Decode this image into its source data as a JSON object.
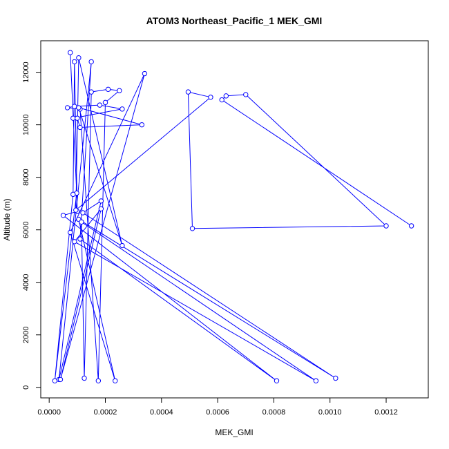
{
  "chart_data": {
    "type": "line",
    "title": "ATOM3 Northeast_Pacific_1 MEK_GMI",
    "xlabel": "MEK_GMI",
    "ylabel": "Altitude (m)",
    "xlim": [
      -3e-05,
      0.00135
    ],
    "ylim": [
      -400,
      13200
    ],
    "x_ticks": [
      0.0,
      0.0002,
      0.0004,
      0.0006,
      0.0008,
      0.001,
      0.0012
    ],
    "x_tick_labels": [
      "0.0000",
      "0.0002",
      "0.0004",
      "0.0006",
      "0.0008",
      "0.0010",
      "0.0012"
    ],
    "y_ticks": [
      0,
      2000,
      4000,
      6000,
      8000,
      10000,
      12000
    ],
    "y_tick_labels": [
      "0",
      "2000",
      "4000",
      "6000",
      "8000",
      "10000",
      "12000"
    ],
    "line_color": "#0000ff",
    "marker": "open-circle",
    "series": [
      {
        "points": [
          {
            "x": 7.5e-05,
            "y": 12750
          },
          {
            "x": 9.8e-05,
            "y": 7400
          },
          {
            "x": 2e-05,
            "y": 250
          },
          {
            "x": 8.5e-05,
            "y": 7350
          },
          {
            "x": 9e-05,
            "y": 12400
          },
          {
            "x": 0.0001,
            "y": 6700
          },
          {
            "x": 5e-05,
            "y": 6550
          },
          {
            "x": 0.00081,
            "y": 250
          },
          {
            "x": 0.00011,
            "y": 5650
          },
          {
            "x": 0.00015,
            "y": 12400
          },
          {
            "x": 3.5e-05,
            "y": 300
          },
          {
            "x": 0.000185,
            "y": 7100
          },
          {
            "x": 0.00012,
            "y": 6650
          },
          {
            "x": 0.00102,
            "y": 350
          },
          {
            "x": 0.000105,
            "y": 6400
          },
          {
            "x": 0.000235,
            "y": 250
          },
          {
            "x": 7.5e-05,
            "y": 5900
          },
          {
            "x": 0.00034,
            "y": 11950
          },
          {
            "x": 4e-05,
            "y": 300
          },
          {
            "x": 0.000185,
            "y": 6800
          },
          {
            "x": 9e-05,
            "y": 5550
          },
          {
            "x": 0.00095,
            "y": 250
          },
          {
            "x": 0.000115,
            "y": 6300
          },
          {
            "x": 0.000125,
            "y": 350
          },
          {
            "x": 0.00015,
            "y": 11250
          },
          {
            "x": 0.00021,
            "y": 11350
          },
          {
            "x": 0.00025,
            "y": 11300
          },
          {
            "x": 0.0002,
            "y": 10850
          },
          {
            "x": 0.000175,
            "y": 250
          },
          {
            "x": 0.00011,
            "y": 10600
          },
          {
            "x": 6.5e-05,
            "y": 10650
          },
          {
            "x": 9e-05,
            "y": 10700
          },
          {
            "x": 0.00018,
            "y": 10750
          },
          {
            "x": 0.00026,
            "y": 10600
          },
          {
            "x": 8.5e-05,
            "y": 10250
          },
          {
            "x": 0.0001,
            "y": 10250
          },
          {
            "x": 0.00011,
            "y": 9900
          },
          {
            "x": 0.00033,
            "y": 10000
          },
          {
            "x": 0.000105,
            "y": 10650
          },
          {
            "x": 0.00026,
            "y": 5400
          },
          {
            "x": 0.000105,
            "y": 12550
          },
          {
            "x": 9.5e-05,
            "y": 6750
          },
          {
            "x": 0.000575,
            "y": 11050
          },
          {
            "x": 0.000495,
            "y": 11250
          },
          {
            "x": 0.00051,
            "y": 6050
          },
          {
            "x": 0.0012,
            "y": 6150
          },
          {
            "x": 0.0007,
            "y": 11150
          },
          {
            "x": 0.00063,
            "y": 11100
          },
          {
            "x": 0.000615,
            "y": 10950
          },
          {
            "x": 0.00129,
            "y": 6150
          }
        ]
      }
    ]
  }
}
